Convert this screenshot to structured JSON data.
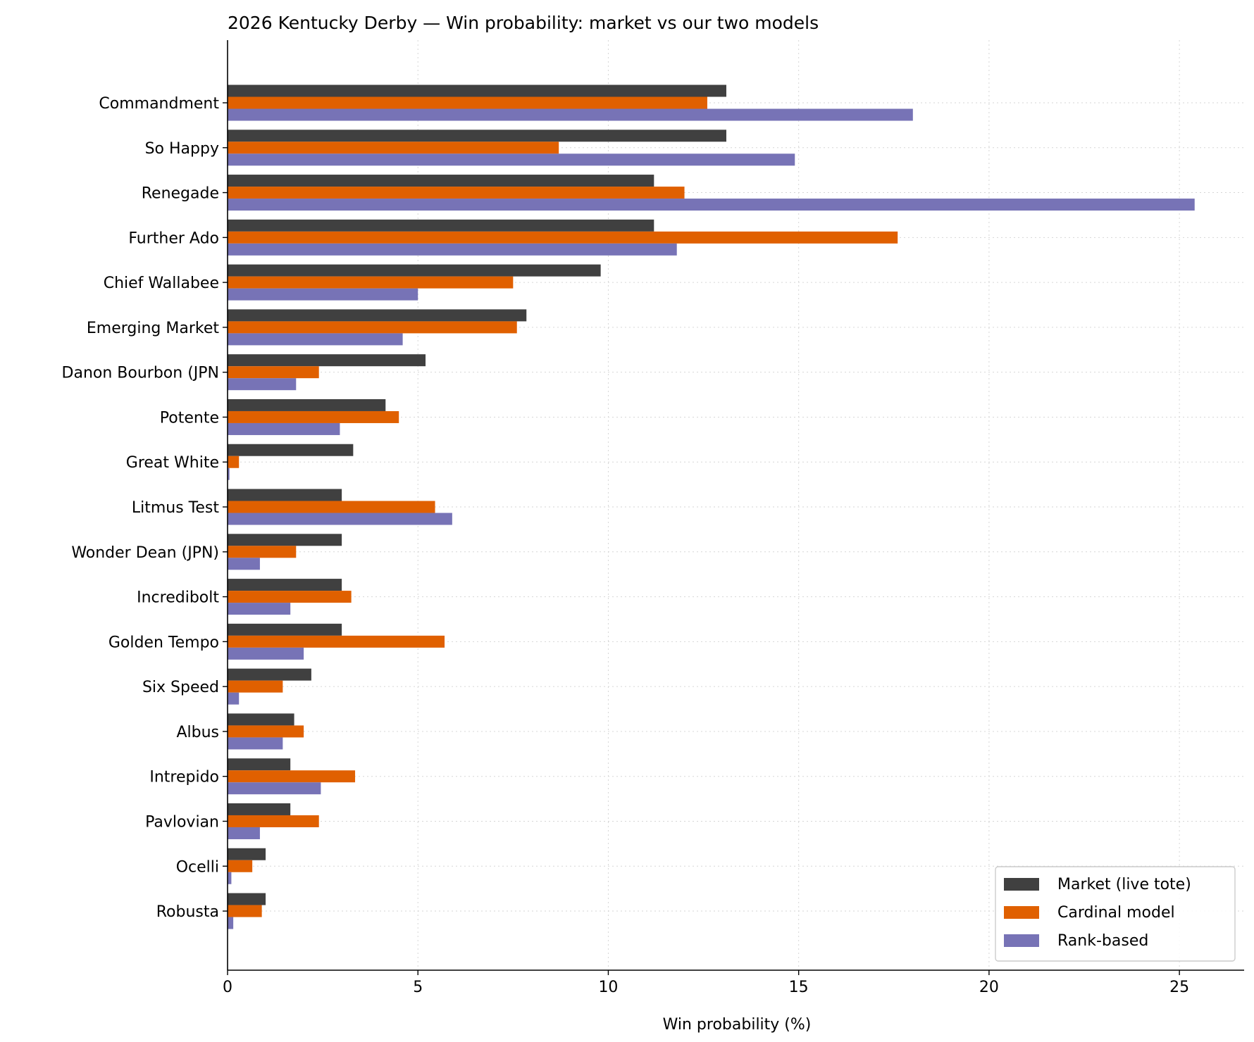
{
  "chart_data": {
    "type": "bar",
    "orientation": "horizontal",
    "title": "2026 Kentucky Derby — Win probability: market vs our two models",
    "xlabel": "Win probability (%)",
    "ylabel": "",
    "xlim": [
      0,
      26.7
    ],
    "xticks": [
      0,
      5,
      10,
      15,
      20,
      25
    ],
    "grid": true,
    "legend_position": "bottom-right",
    "categories": [
      "Commandment",
      "So Happy",
      "Renegade",
      "Further Ado",
      "Chief Wallabee",
      "Emerging Market",
      "Danon Bourbon (JPN",
      "Potente",
      "Great White",
      "Litmus Test",
      "Wonder Dean (JPN)",
      "Incredibolt",
      "Golden Tempo",
      "Six Speed",
      "Albus",
      "Intrepido",
      "Pavlovian",
      "Ocelli",
      "Robusta"
    ],
    "series": [
      {
        "name": "Market (live tote)",
        "color": "#404040",
        "values": [
          13.1,
          13.1,
          11.2,
          11.2,
          9.8,
          7.85,
          5.2,
          4.15,
          3.3,
          3.0,
          3.0,
          3.0,
          3.0,
          2.2,
          1.75,
          1.65,
          1.65,
          1.0,
          1.0
        ]
      },
      {
        "name": "Cardinal model",
        "color": "#e06000",
        "values": [
          12.6,
          8.7,
          12.0,
          17.6,
          7.5,
          7.6,
          2.4,
          4.5,
          0.3,
          5.45,
          1.8,
          3.25,
          5.7,
          1.45,
          2.0,
          3.35,
          2.4,
          0.65,
          0.9
        ]
      },
      {
        "name": "Rank-based",
        "color": "#7773b6",
        "values": [
          18.0,
          14.9,
          25.4,
          11.8,
          5.0,
          4.6,
          1.8,
          2.95,
          0.05,
          5.9,
          0.85,
          1.65,
          2.0,
          0.3,
          1.45,
          2.45,
          0.85,
          0.1,
          0.15
        ]
      }
    ]
  }
}
